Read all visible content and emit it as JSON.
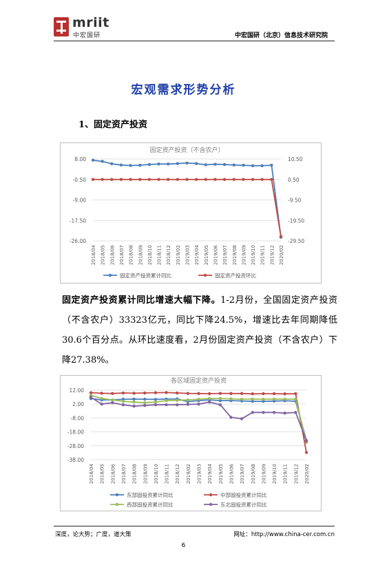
{
  "header": {
    "logo_text": "mriit",
    "logo_cn": "中宏国研",
    "org_name": "中宏国研（北京）信息技术研究院"
  },
  "title": "宏观需求形势分析",
  "section_heading": "1、固定资产投资",
  "paragraph": {
    "lead": "固定资产投资累计同比增速大幅下降。",
    "body": "1-2月份，全国固定资产投资（不含农户）33323亿元，同比下降24.5%，增速比去年同期降低30.6个百分点。从环比速度看，2月份固定资产投资（不含农户）下降27.38%。"
  },
  "chart_data": [
    {
      "type": "line",
      "title": "固定资产投资（不含农户）",
      "categories": [
        "2018/04",
        "2018/05",
        "2018/06",
        "2018/07",
        "2018/08",
        "2018/09",
        "2018/10",
        "2018/11",
        "2018/12",
        "2019/02",
        "2019/03",
        "2019/04",
        "2019/05",
        "2019/06",
        "2019/07",
        "2019/08",
        "2019/09",
        "2019/10",
        "2019/11",
        "2019/12",
        "2020/02"
      ],
      "y_left": {
        "min": -26.0,
        "max": 8.0,
        "ticks": [
          "8.00",
          "-0.50",
          "-9.00",
          "-17.50",
          "-26.00"
        ]
      },
      "y_right": {
        "min": -29.5,
        "max": 10.5,
        "ticks": [
          "10.50",
          "0.50",
          "-9.50",
          "-19.50",
          "-29.50"
        ]
      },
      "series": [
        {
          "name": "固定资产投资累计同比",
          "color": "#4a7ebb",
          "axis": "left",
          "values": [
            7.5,
            7.0,
            6.0,
            5.5,
            5.3,
            5.4,
            5.7,
            5.9,
            5.9,
            6.1,
            6.3,
            6.1,
            5.6,
            5.8,
            5.7,
            5.5,
            5.4,
            5.2,
            5.2,
            5.4,
            -24.5
          ]
        },
        {
          "name": "固定资产投资环比",
          "color": "#be4b48",
          "axis": "right",
          "values": [
            0.5,
            0.5,
            0.5,
            0.5,
            0.5,
            0.5,
            0.5,
            0.5,
            0.5,
            0.5,
            0.5,
            0.5,
            0.5,
            0.5,
            0.5,
            0.5,
            0.5,
            0.5,
            0.5,
            0.5,
            -27.38
          ]
        }
      ]
    },
    {
      "type": "line",
      "title": "各区域固定资产投资",
      "categories": [
        "2018/04",
        "2018/05",
        "2018/06",
        "2018/07",
        "2018/08",
        "2018/09",
        "2018/10",
        "2018/11",
        "2018/12",
        "2019/02",
        "2019/03",
        "2019/04",
        "2019/05",
        "2019/06",
        "2019/07",
        "2019/08",
        "2019/09",
        "2019/10",
        "2019/11",
        "2019/12",
        "2020/02"
      ],
      "y": {
        "min": -38.0,
        "max": 12.0,
        "ticks": [
          "12.00",
          "2.00",
          "-8.00",
          "-18.00",
          "-28.00",
          "-38.00"
        ]
      },
      "series": [
        {
          "name": "东部固投资累计同比",
          "color": "#4a7ebb",
          "values": [
            6.0,
            5.0,
            5.0,
            5.5,
            5.6,
            5.5,
            5.4,
            5.6,
            5.7,
            3.8,
            4.5,
            5.0,
            4.5,
            4.5,
            4.3,
            4.0,
            4.0,
            4.2,
            4.4,
            4.1,
            -24.2
          ]
        },
        {
          "name": "中部固投资累计同比",
          "color": "#be4b48",
          "values": [
            10.2,
            9.8,
            9.6,
            10.0,
            9.8,
            10.0,
            10.2,
            10.3,
            10.0,
            9.7,
            9.6,
            9.5,
            9.7,
            9.6,
            9.6,
            9.4,
            9.5,
            9.5,
            9.4,
            9.5,
            -32.8
          ]
        },
        {
          "name": "西部固投资累计同比",
          "color": "#9bbb59",
          "values": [
            8.4,
            6.0,
            5.0,
            4.0,
            3.5,
            3.0,
            3.5,
            4.5,
            4.7,
            5.0,
            5.5,
            6.0,
            6.0,
            5.8,
            5.5,
            5.6,
            5.5,
            5.6,
            5.5,
            5.6,
            -25.5
          ]
        },
        {
          "name": "东北固投资累计同比",
          "color": "#7f64a0",
          "values": [
            7.0,
            2.0,
            3.0,
            1.5,
            0.5,
            1.0,
            1.5,
            1.5,
            1.5,
            1.8,
            2.0,
            3.5,
            1.5,
            -7.5,
            -8.5,
            -4.0,
            -4.0,
            -4.0,
            -4.5,
            -4.0,
            -24.5
          ]
        }
      ]
    }
  ],
  "footer": {
    "left": "深度，论大势；广度，道大策",
    "right": "网址：http://www.china-cer.com.cn",
    "page": "6"
  }
}
